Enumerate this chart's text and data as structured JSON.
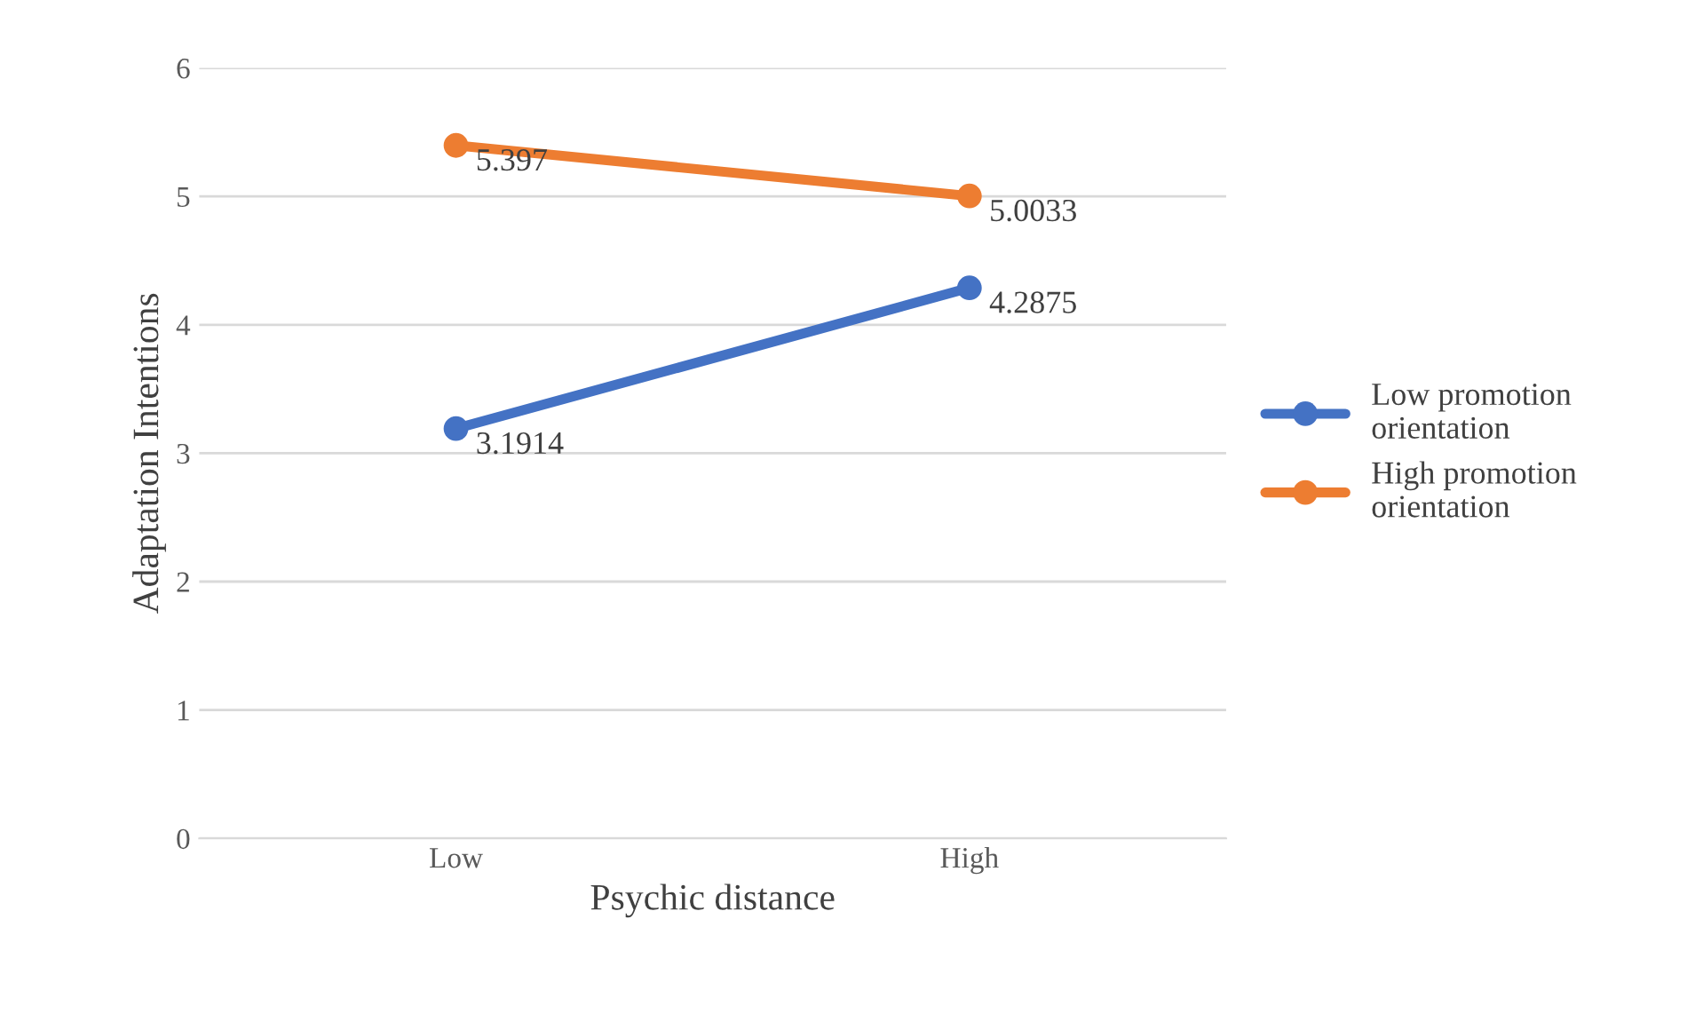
{
  "chart_data": {
    "type": "line",
    "xlabel": "Psychic distance",
    "ylabel": "Adaptation Intentions",
    "categories": [
      "Low",
      "High"
    ],
    "series": [
      {
        "name": "Low promotion orientation",
        "color": "#4472c4",
        "values": [
          3.1914,
          4.2875
        ]
      },
      {
        "name": "High promotion orientation",
        "color": "#ed7d31",
        "values": [
          5.397,
          5.0033
        ]
      }
    ],
    "ylim": [
      0,
      6
    ],
    "yticks": [
      0,
      1,
      2,
      3,
      4,
      5,
      6
    ],
    "grid": "y",
    "legend": "right",
    "marker": "circle",
    "line_style": "solid",
    "data_labels": true
  }
}
